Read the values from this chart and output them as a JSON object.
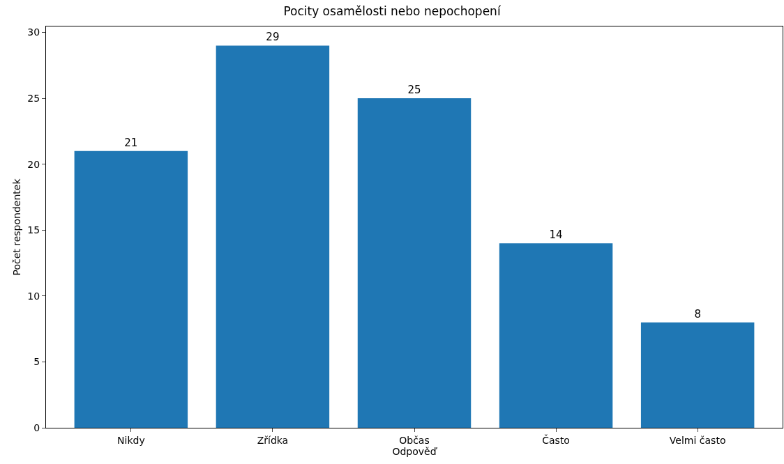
{
  "chart_data": {
    "type": "bar",
    "title": "Pocity osamělosti nebo nepochopení",
    "xlabel": "Odpověď",
    "ylabel": "Počet respondentek",
    "categories": [
      "Nikdy",
      "Zřídka",
      "Občas",
      "Často",
      "Velmi často"
    ],
    "values": [
      21,
      29,
      25,
      14,
      8
    ],
    "color": "#1f77b4",
    "ylim": [
      0,
      30.45
    ],
    "yticks": [
      0,
      5,
      10,
      15,
      20,
      25,
      30
    ],
    "data_labels": true
  }
}
